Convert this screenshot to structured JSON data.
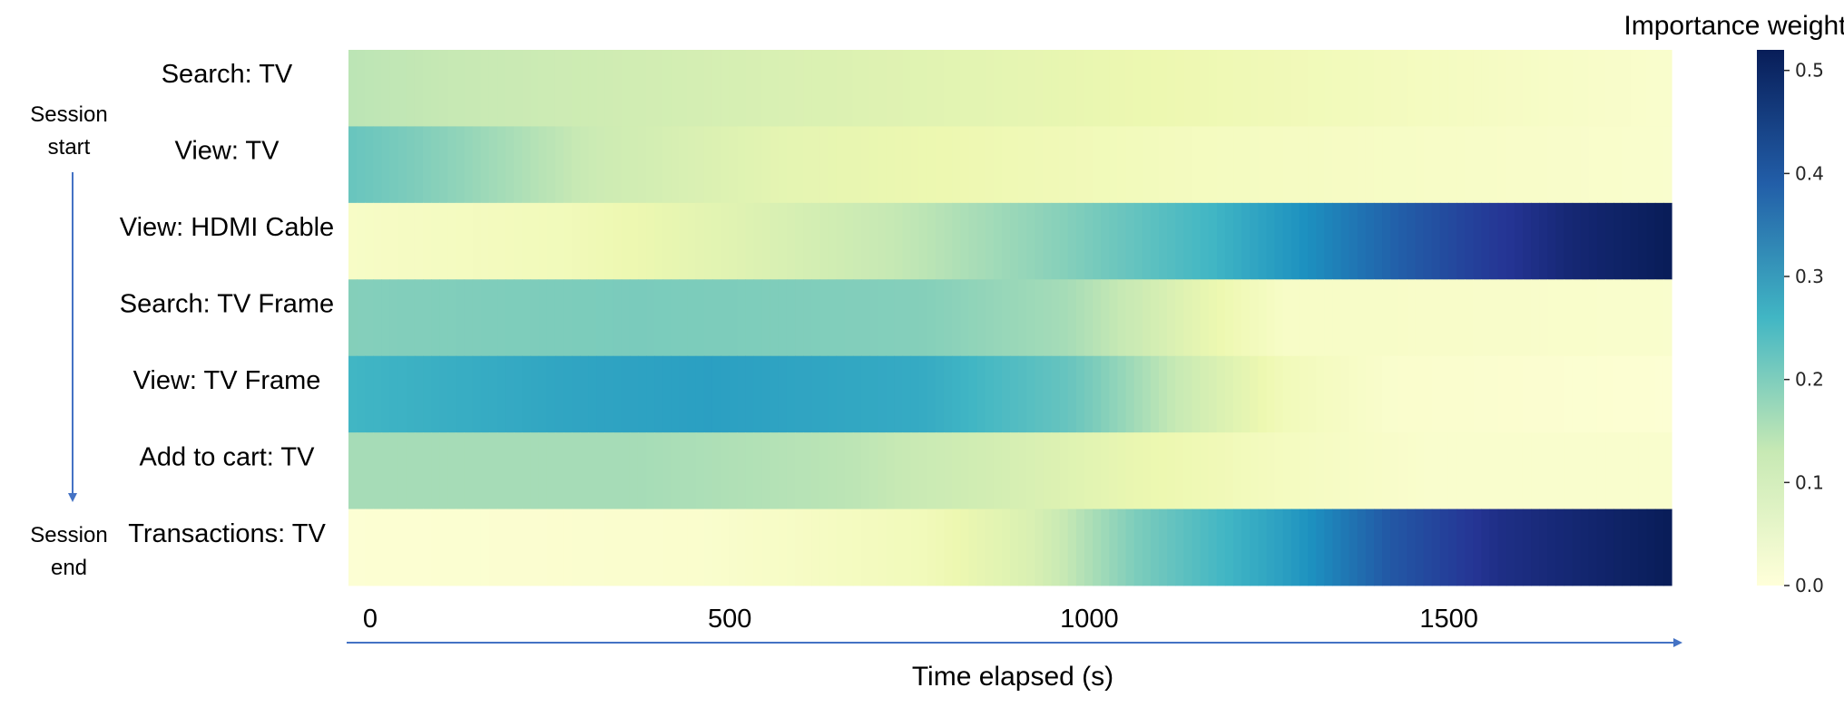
{
  "chart_data": {
    "type": "heatmap",
    "colorbar_title": "Importance weight",
    "colorbar_ticks": [
      "0.0",
      "0.1",
      "0.2",
      "0.3",
      "0.4",
      "0.5"
    ],
    "colorbar_range": [
      0,
      0.52
    ],
    "rows": [
      "Search: TV",
      "View: TV",
      "View: HDMI Cable",
      "Search: TV Frame",
      "View: TV Frame",
      "Add to cart: TV",
      "Transactions: TV"
    ],
    "x_ticks": [
      0,
      500,
      1000,
      1500
    ],
    "x_range": [
      0,
      1840
    ],
    "xlabel": "Time elapsed (s)",
    "side_labels": {
      "start": "Session\nstart",
      "end": "Session\nend"
    },
    "profiles": [
      [
        [
          0,
          0.14
        ],
        [
          300,
          0.12
        ],
        [
          600,
          0.1
        ],
        [
          900,
          0.08
        ],
        [
          1200,
          0.06
        ],
        [
          1500,
          0.04
        ],
        [
          1840,
          0.02
        ]
      ],
      [
        [
          0,
          0.22
        ],
        [
          150,
          0.18
        ],
        [
          350,
          0.12
        ],
        [
          600,
          0.08
        ],
        [
          900,
          0.06
        ],
        [
          1200,
          0.04
        ],
        [
          1500,
          0.03
        ],
        [
          1840,
          0.02
        ]
      ],
      [
        [
          0,
          0.03
        ],
        [
          300,
          0.05
        ],
        [
          550,
          0.09
        ],
        [
          800,
          0.14
        ],
        [
          1000,
          0.19
        ],
        [
          1200,
          0.26
        ],
        [
          1400,
          0.36
        ],
        [
          1550,
          0.43
        ],
        [
          1700,
          0.49
        ],
        [
          1840,
          0.52
        ]
      ],
      [
        [
          0,
          0.19
        ],
        [
          400,
          0.2
        ],
        [
          800,
          0.19
        ],
        [
          1000,
          0.16
        ],
        [
          1100,
          0.12
        ],
        [
          1200,
          0.07
        ],
        [
          1300,
          0.03
        ],
        [
          1840,
          0.02
        ]
      ],
      [
        [
          0,
          0.26
        ],
        [
          300,
          0.29
        ],
        [
          500,
          0.3
        ],
        [
          800,
          0.28
        ],
        [
          1000,
          0.22
        ],
        [
          1150,
          0.13
        ],
        [
          1300,
          0.05
        ],
        [
          1450,
          0.02
        ],
        [
          1840,
          0.01
        ]
      ],
      [
        [
          0,
          0.16
        ],
        [
          400,
          0.16
        ],
        [
          700,
          0.14
        ],
        [
          900,
          0.11
        ],
        [
          1100,
          0.07
        ],
        [
          1300,
          0.04
        ],
        [
          1500,
          0.02
        ],
        [
          1840,
          0.02
        ]
      ],
      [
        [
          0,
          0.01
        ],
        [
          500,
          0.02
        ],
        [
          800,
          0.05
        ],
        [
          950,
          0.1
        ],
        [
          1100,
          0.2
        ],
        [
          1300,
          0.3
        ],
        [
          1450,
          0.4
        ],
        [
          1600,
          0.47
        ],
        [
          1840,
          0.52
        ]
      ]
    ]
  }
}
